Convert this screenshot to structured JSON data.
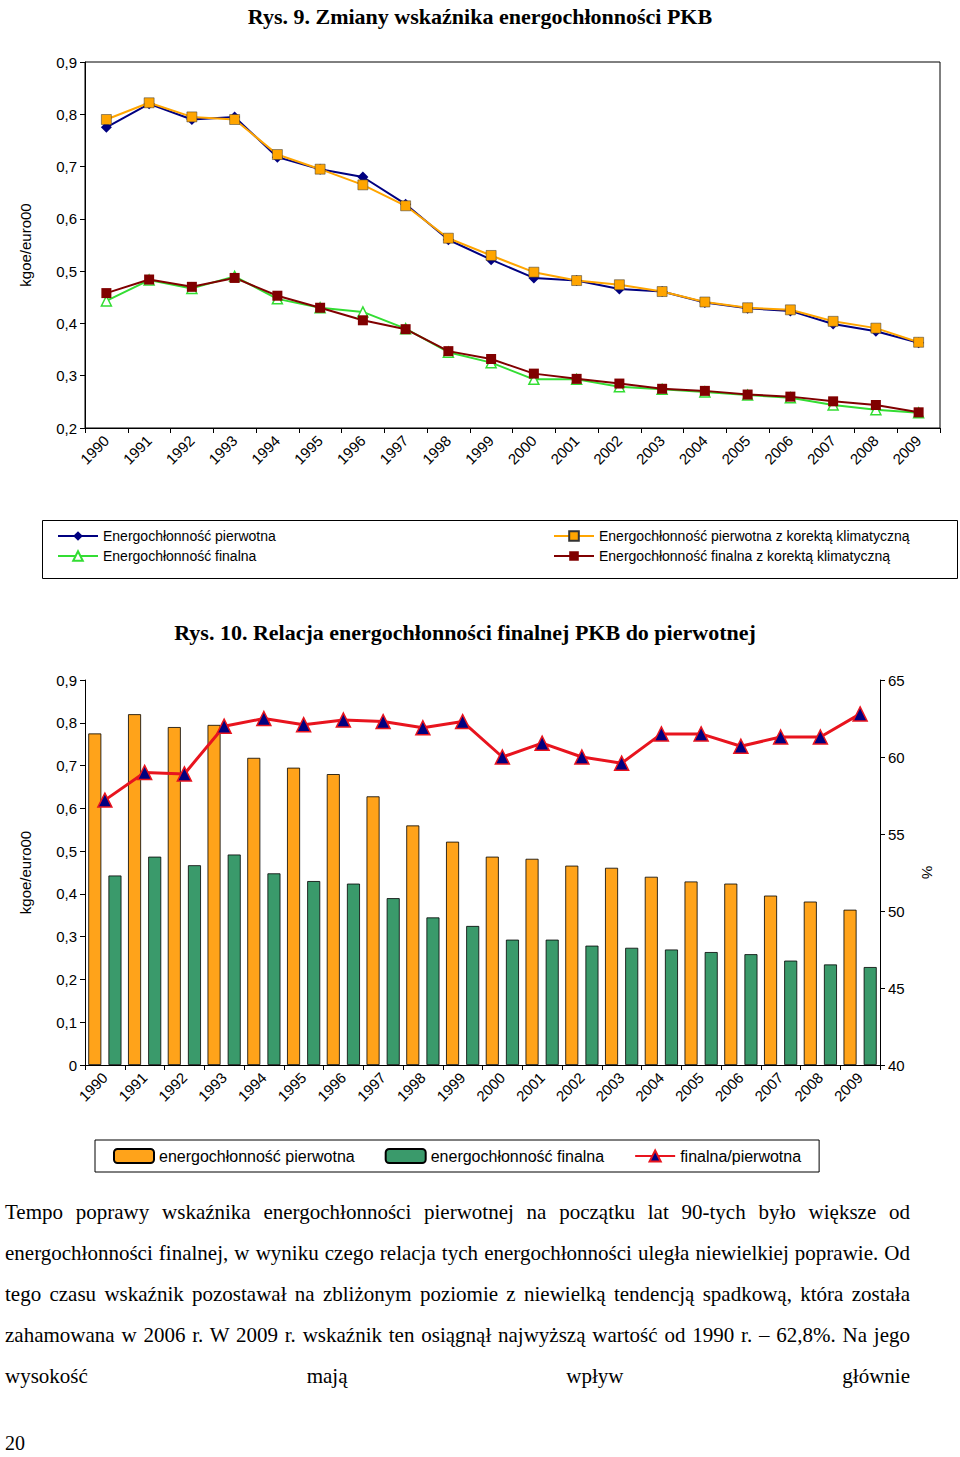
{
  "chart_data": [
    {
      "type": "line",
      "title": "Rys. 9. Zmiany wskaźnika energochłonności PKB",
      "y_label": "kgoe/euro00",
      "categories": [
        "1990",
        "1991",
        "1992",
        "1993",
        "1994",
        "1995",
        "1996",
        "1997",
        "1998",
        "1999",
        "2000",
        "2001",
        "2002",
        "2003",
        "2004",
        "2005",
        "2006",
        "2007",
        "2008",
        "2009"
      ],
      "series": [
        {
          "name": "Energochłonność pierwotna",
          "color": "#000080",
          "marker": "diamond",
          "values": [
            0.775,
            0.82,
            0.79,
            0.795,
            0.718,
            0.695,
            0.68,
            0.628,
            0.56,
            0.522,
            0.487,
            0.482,
            0.466,
            0.461,
            0.44,
            0.429,
            0.424,
            0.399,
            0.385,
            0.363
          ]
        },
        {
          "name": "Energochłonność pierwotna z korektą klimatyczną",
          "color": "#ffa500",
          "marker": "square",
          "values": [
            0.79,
            0.822,
            0.795,
            0.79,
            0.723,
            0.695,
            0.665,
            0.625,
            0.563,
            0.53,
            0.498,
            0.482,
            0.474,
            0.461,
            0.441,
            0.43,
            0.426,
            0.404,
            0.391,
            0.364
          ]
        },
        {
          "name": "Energochłonność finalna",
          "color": "#33dd33",
          "marker": "triangle",
          "values": [
            0.443,
            0.483,
            0.467,
            0.49,
            0.447,
            0.43,
            0.422,
            0.39,
            0.345,
            0.325,
            0.293,
            0.293,
            0.279,
            0.274,
            0.269,
            0.263,
            0.258,
            0.244,
            0.235,
            0.229
          ]
        },
        {
          "name": "Energochłonność finalna z korektą klimatyczną",
          "color": "#800000",
          "marker": "square",
          "values": [
            0.458,
            0.484,
            0.47,
            0.487,
            0.453,
            0.43,
            0.406,
            0.389,
            0.347,
            0.332,
            0.304,
            0.294,
            0.285,
            0.275,
            0.271,
            0.264,
            0.26,
            0.251,
            0.244,
            0.23
          ]
        }
      ],
      "ylim": [
        0.2,
        0.9
      ],
      "yticks": [
        {
          "value": 0.2,
          "label": "0,2"
        },
        {
          "value": 0.3,
          "label": "0,3"
        },
        {
          "value": 0.4,
          "label": "0,4"
        },
        {
          "value": 0.5,
          "label": "0,5"
        },
        {
          "value": 0.6,
          "label": "0,6"
        },
        {
          "value": 0.7,
          "label": "0,7"
        },
        {
          "value": 0.8,
          "label": "0,8"
        },
        {
          "value": 0.9,
          "label": "0,9"
        }
      ],
      "grid": false,
      "legend": "bottom"
    },
    {
      "type": "bar",
      "title": "Rys. 10. Relacja energochłonności finalnej PKB do pierwotnej",
      "y_label": "kgoe/euro00",
      "y2_label": "%",
      "categories": [
        "1990",
        "1991",
        "1992",
        "1993",
        "1994",
        "1995",
        "1996",
        "1997",
        "1998",
        "1999",
        "2000",
        "2001",
        "2002",
        "2003",
        "2004",
        "2005",
        "2006",
        "2007",
        "2008",
        "2009"
      ],
      "series": [
        {
          "name": "energochłonność pierwotna",
          "color": "#ffa31a",
          "type": "bar",
          "values": [
            0.775,
            0.82,
            0.79,
            0.795,
            0.718,
            0.695,
            0.68,
            0.628,
            0.56,
            0.522,
            0.487,
            0.482,
            0.466,
            0.461,
            0.44,
            0.429,
            0.424,
            0.396,
            0.382,
            0.363
          ]
        },
        {
          "name": "energochłonność finalna",
          "color": "#3a9a6b",
          "type": "bar",
          "values": [
            0.443,
            0.487,
            0.467,
            0.492,
            0.448,
            0.43,
            0.424,
            0.39,
            0.345,
            0.325,
            0.293,
            0.293,
            0.279,
            0.274,
            0.27,
            0.264,
            0.259,
            0.244,
            0.235,
            0.229
          ]
        },
        {
          "name": "finalna/pierwotna",
          "color": "#e8141e",
          "type": "line",
          "marker": "triangle",
          "axis": "y2",
          "values": [
            57.2,
            59.0,
            58.9,
            62.0,
            62.5,
            62.1,
            62.4,
            62.3,
            61.9,
            62.3,
            60.0,
            60.9,
            60.0,
            59.6,
            61.5,
            61.5,
            60.7,
            61.3,
            61.3,
            62.8
          ]
        }
      ],
      "ylim": [
        0,
        0.9
      ],
      "yticks": [
        0,
        {
          "value": 0.1,
          "label": "0,1"
        },
        {
          "value": 0.2,
          "label": "0,2"
        },
        {
          "value": 0.3,
          "label": "0,3"
        },
        {
          "value": 0.4,
          "label": "0,4"
        },
        {
          "value": 0.5,
          "label": "0,5"
        },
        {
          "value": 0.6,
          "label": "0,6"
        },
        {
          "value": 0.7,
          "label": "0,7"
        },
        {
          "value": 0.8,
          "label": "0,8"
        },
        {
          "value": 0.9,
          "label": "0,9"
        }
      ],
      "y2lim": [
        40,
        65
      ],
      "y2ticks": [
        40,
        45,
        50,
        55,
        60,
        65
      ],
      "grid": false,
      "legend": "bottom"
    }
  ],
  "text": "Tempo poprawy wskaźnika energochłonności pierwotnej na początku lat 90-tych było większe od energochłonności finalnej, w wyniku czego relacja tych energochłonności uległa niewielkiej poprawie. Od tego czasu wskaźnik pozostawał na zbliżonym poziomie z niewielką tendencją spadkową, która została zahamowana w 2006 r. W 2009 r. wskaźnik ten osiągnął najwyższą wartość od 1990 r. – 62,8%. Na jego wysokość mają wpływ głównie",
  "page_number": "20"
}
